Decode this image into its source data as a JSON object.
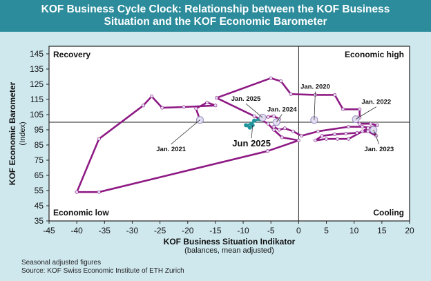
{
  "header": {
    "title_line1": "KOF Business Cycle Clock: Relationship between the KOF Business",
    "title_line2": "Situation and the KOF Economic Barometer"
  },
  "footer": {
    "line1": "Seasonal adjusted figures",
    "line2": "Source: KOF Swiss Economic Institute of ETH Zurich"
  },
  "colors": {
    "title_bg": "#2c8c9c",
    "background": "#cfe8ee",
    "main_line": "#8e1a84",
    "recent_line": "#21939b",
    "marker": "#e2ddf0"
  },
  "chart_data": {
    "type": "scatter",
    "connected": true,
    "xlabel": "KOF Business Situation Indikator",
    "xlabel_sub": "(balances, mean adjusted)",
    "ylabel": "KOF Economic Barometer",
    "ylabel_sub": "(Index)",
    "xlim": [
      -45,
      20
    ],
    "ylim": [
      35,
      150
    ],
    "xticks": [
      -45,
      -40,
      -35,
      -30,
      -25,
      -20,
      -15,
      -10,
      -5,
      0,
      5,
      10,
      15,
      20
    ],
    "yticks": [
      35,
      45,
      55,
      65,
      75,
      85,
      95,
      105,
      115,
      125,
      135,
      145
    ],
    "center": {
      "x": 0,
      "y": 100
    },
    "quadrants": {
      "top_left": "Recovery",
      "top_right": "Economic high",
      "bottom_left": "Economic low",
      "bottom_right": "Cooling"
    },
    "series": [
      {
        "points": [
          {
            "x": -17.8,
            "y": 101.5
          },
          {
            "x": -18.5,
            "y": 109
          },
          {
            "x": -16.5,
            "y": 113
          },
          {
            "x": -15,
            "y": 111
          },
          {
            "x": -20.7,
            "y": 110
          },
          {
            "x": -24.6,
            "y": 109.5
          },
          {
            "x": -26.5,
            "y": 117
          },
          {
            "x": -28,
            "y": 111
          },
          {
            "x": -36,
            "y": 89
          },
          {
            "x": -40,
            "y": 54
          },
          {
            "x": -36,
            "y": 54
          },
          {
            "x": -5.6,
            "y": 81
          },
          {
            "x": 0,
            "y": 88
          },
          {
            "x": -3,
            "y": 90
          },
          {
            "x": -4.5,
            "y": 95
          },
          {
            "x": -5.5,
            "y": 99
          },
          {
            "x": -8,
            "y": 104
          },
          {
            "x": -14.8,
            "y": 116
          },
          {
            "x": -5,
            "y": 129
          },
          {
            "x": -3.2,
            "y": 127
          },
          {
            "x": -1.4,
            "y": 118.5
          },
          {
            "x": 3,
            "y": 118
          },
          {
            "x": 6.5,
            "y": 118
          },
          {
            "x": 8,
            "y": 108.5
          },
          {
            "x": 11,
            "y": 108.5
          },
          {
            "x": 11,
            "y": 103
          },
          {
            "x": 10.3,
            "y": 101
          },
          {
            "x": 11,
            "y": 99
          },
          {
            "x": 13,
            "y": 99
          },
          {
            "x": 14.2,
            "y": 98
          },
          {
            "x": 12.5,
            "y": 96
          },
          {
            "x": 11.5,
            "y": 94
          },
          {
            "x": 9,
            "y": 89
          },
          {
            "x": 7,
            "y": 89
          },
          {
            "x": 5,
            "y": 89
          },
          {
            "x": 3,
            "y": 88
          },
          {
            "x": 4.2,
            "y": 91
          },
          {
            "x": 6.5,
            "y": 92
          },
          {
            "x": 8.5,
            "y": 92.5
          },
          {
            "x": 10.5,
            "y": 93
          },
          {
            "x": 12.5,
            "y": 94
          },
          {
            "x": 14,
            "y": 91
          },
          {
            "x": 13.5,
            "y": 96
          },
          {
            "x": 11.5,
            "y": 97
          },
          {
            "x": 9,
            "y": 97
          },
          {
            "x": 3.5,
            "y": 94
          },
          {
            "x": 0.5,
            "y": 91
          },
          {
            "x": -1,
            "y": 94
          },
          {
            "x": -2.5,
            "y": 96
          },
          {
            "x": -3.5,
            "y": 95
          },
          {
            "x": -4.5,
            "y": 97
          },
          {
            "x": -4,
            "y": 100
          },
          {
            "x": -3.5,
            "y": 102
          },
          {
            "x": -4.5,
            "y": 104
          },
          {
            "x": -5.5,
            "y": 103.5
          },
          {
            "x": -6.5,
            "y": 103
          }
        ]
      },
      {
        "highlight": true,
        "points": [
          {
            "x": -6.5,
            "y": 103
          },
          {
            "x": -7,
            "y": 102
          },
          {
            "x": -8,
            "y": 101
          },
          {
            "x": -8.5,
            "y": 99
          },
          {
            "x": -9.5,
            "y": 98
          },
          {
            "x": -8.8,
            "y": 96.5
          },
          {
            "x": -8.3,
            "y": 98
          }
        ]
      }
    ],
    "annotations": [
      {
        "text": "Jan. 2020",
        "x": 2.8,
        "y": 101.5,
        "labelX": 3,
        "labelY": 122
      },
      {
        "text": "Jan. 2021",
        "x": -17.8,
        "y": 101.5,
        "labelX": -23,
        "labelY": 81
      },
      {
        "text": "Jan. 2022",
        "x": 10.3,
        "y": 102,
        "labelX": 14,
        "labelY": 112
      },
      {
        "text": "Jan. 2023",
        "x": 13.5,
        "y": 95,
        "labelX": 14.5,
        "labelY": 81
      },
      {
        "text": "Jan. 2024",
        "x": -4,
        "y": 100,
        "labelX": -3,
        "labelY": 107
      },
      {
        "text": "Jan. 2025",
        "x": -6.5,
        "y": 103,
        "labelX": -9.5,
        "labelY": 114
      },
      {
        "text": "Jun 2025",
        "x": -8.3,
        "y": 98,
        "labelX": -8.5,
        "labelY": 84,
        "bold": true
      }
    ]
  }
}
